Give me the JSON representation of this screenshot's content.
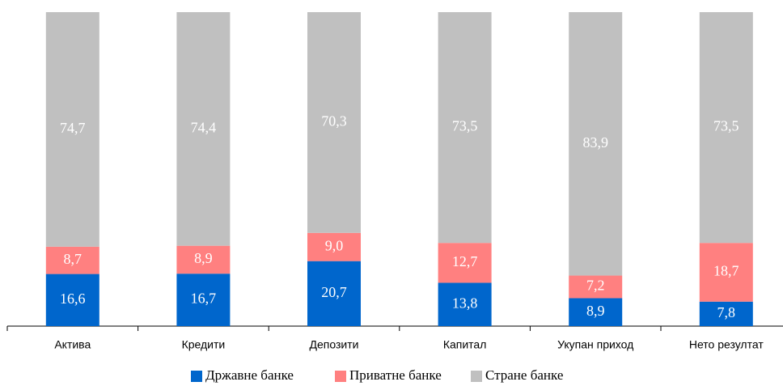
{
  "chart_data": {
    "type": "stacked_bar",
    "categories": [
      "Актива",
      "Кредити",
      "Депозити",
      "Капитал",
      "Укупан приход",
      "Нето резултат"
    ],
    "series": [
      {
        "name": "Државне банке",
        "color": "#0066cc",
        "values": [
          16.6,
          16.7,
          20.7,
          13.8,
          8.9,
          7.8
        ],
        "value_labels": [
          "16,6",
          "16,7",
          "20,7",
          "13,8",
          "8,9",
          "7,8"
        ]
      },
      {
        "name": "Приватне банке",
        "color": "#ff8080",
        "values": [
          8.7,
          8.9,
          9.0,
          12.7,
          7.2,
          18.7
        ],
        "value_labels": [
          "8,7",
          "8,9",
          "9,0",
          "12,7",
          "7,2",
          "18,7"
        ]
      },
      {
        "name": "Стране банке",
        "color": "#c0c0c0",
        "values": [
          74.7,
          74.4,
          70.3,
          73.5,
          83.9,
          73.5
        ],
        "value_labels": [
          "74,7",
          "74,4",
          "70,3",
          "73,5",
          "83,9",
          "73,5"
        ]
      }
    ],
    "ylim": [
      0,
      100
    ],
    "legend": "bottom"
  }
}
